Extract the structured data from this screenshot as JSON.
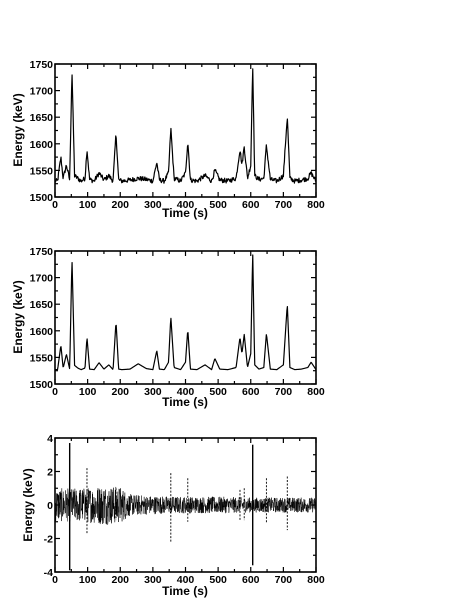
{
  "chart_data": [
    {
      "type": "line",
      "xlabel": "Time (s)",
      "ylabel": "Energy (keV)",
      "xlim": [
        0,
        800
      ],
      "ylim": [
        1500,
        1750
      ],
      "xticks": [
        0,
        100,
        200,
        300,
        400,
        500,
        600,
        700,
        800
      ],
      "yticks": [
        1500,
        1550,
        1600,
        1650,
        1700,
        1750
      ],
      "grid": false,
      "baseline": 1530,
      "noisy": true,
      "series": [
        {
          "x": [
            0,
            8,
            18,
            25,
            35,
            45,
            52,
            60,
            70,
            80,
            92,
            98,
            106,
            120,
            135,
            150,
            165,
            178,
            187,
            195,
            205,
            230,
            255,
            280,
            300,
            312,
            320,
            335,
            348,
            355,
            365,
            385,
            400,
            407,
            415,
            435,
            460,
            480,
            490,
            505,
            530,
            555,
            567,
            573,
            580,
            590,
            600,
            606,
            612,
            625,
            640,
            648,
            660,
            680,
            700,
            712,
            720,
            735,
            755,
            775,
            785,
            800
          ],
          "y": [
            1530,
            1530,
            1575,
            1535,
            1560,
            1532,
            1738,
            1540,
            1535,
            1530,
            1535,
            1590,
            1533,
            1530,
            1545,
            1532,
            1540,
            1530,
            1620,
            1532,
            1530,
            1532,
            1535,
            1533,
            1530,
            1565,
            1532,
            1530,
            1545,
            1630,
            1535,
            1530,
            1545,
            1605,
            1532,
            1530,
            1540,
            1530,
            1550,
            1532,
            1530,
            1535,
            1590,
            1560,
            1595,
            1535,
            1560,
            1750,
            1540,
            1533,
            1535,
            1597,
            1533,
            1530,
            1540,
            1652,
            1535,
            1530,
            1532,
            1535,
            1545,
            1530
          ]
        }
      ]
    },
    {
      "type": "line",
      "xlabel": "Time (s)",
      "ylabel": "Energy (keV)",
      "xlim": [
        0,
        800
      ],
      "ylim": [
        1500,
        1750
      ],
      "xticks": [
        0,
        100,
        200,
        300,
        400,
        500,
        600,
        700,
        800
      ],
      "yticks": [
        1500,
        1550,
        1600,
        1650,
        1700,
        1750
      ],
      "grid": false,
      "baseline": 1527,
      "noisy": false,
      "series": [
        {
          "x": [
            0,
            8,
            18,
            25,
            35,
            45,
            52,
            60,
            70,
            80,
            92,
            98,
            106,
            120,
            135,
            150,
            165,
            178,
            187,
            195,
            205,
            230,
            255,
            280,
            300,
            312,
            320,
            335,
            348,
            355,
            365,
            385,
            400,
            407,
            415,
            435,
            460,
            480,
            490,
            505,
            530,
            555,
            567,
            573,
            580,
            590,
            600,
            606,
            612,
            625,
            640,
            648,
            660,
            680,
            700,
            712,
            720,
            735,
            755,
            775,
            785,
            800
          ],
          "y": [
            1527,
            1527,
            1573,
            1530,
            1556,
            1528,
            1736,
            1535,
            1530,
            1527,
            1530,
            1588,
            1528,
            1527,
            1540,
            1528,
            1536,
            1527,
            1618,
            1528,
            1527,
            1528,
            1538,
            1529,
            1527,
            1563,
            1528,
            1527,
            1541,
            1627,
            1531,
            1527,
            1541,
            1603,
            1528,
            1527,
            1536,
            1527,
            1548,
            1528,
            1527,
            1531,
            1588,
            1557,
            1593,
            1531,
            1557,
            1748,
            1536,
            1528,
            1531,
            1595,
            1528,
            1527,
            1536,
            1650,
            1531,
            1527,
            1528,
            1531,
            1541,
            1527
          ]
        }
      ]
    },
    {
      "type": "line",
      "xlabel": "Time (s)",
      "ylabel": "Energy (keV)",
      "xlim": [
        0,
        800
      ],
      "ylim": [
        -4,
        4
      ],
      "xticks": [
        0,
        100,
        200,
        300,
        400,
        500,
        600,
        700,
        800
      ],
      "yticks": [
        -4,
        -2,
        0,
        2,
        4
      ],
      "grid": false,
      "description": "residual",
      "envelope": {
        "x": [
          0,
          50,
          100,
          150,
          200,
          230,
          300,
          400,
          500,
          600,
          700,
          800
        ],
        "amplitude": [
          1.0,
          1.0,
          1.05,
          1.2,
          1.1,
          0.65,
          0.55,
          0.5,
          0.5,
          0.45,
          0.45,
          0.45
        ]
      },
      "spikes": [
        {
          "x": 45,
          "top": 3.7,
          "bottom": -3.9
        },
        {
          "x": 98,
          "top": 2.2,
          "bottom": -1.7
        },
        {
          "x": 187,
          "top": 1.0,
          "bottom": -0.9
        },
        {
          "x": 355,
          "top": 1.9,
          "bottom": -2.2
        },
        {
          "x": 407,
          "top": 1.6,
          "bottom": -1.0
        },
        {
          "x": 567,
          "top": 0.9,
          "bottom": -0.9
        },
        {
          "x": 580,
          "top": 1.0,
          "bottom": -0.9
        },
        {
          "x": 606,
          "top": 3.6,
          "bottom": -3.6
        },
        {
          "x": 648,
          "top": 1.6,
          "bottom": -1.1
        },
        {
          "x": 712,
          "top": 1.7,
          "bottom": -1.5
        }
      ]
    }
  ]
}
